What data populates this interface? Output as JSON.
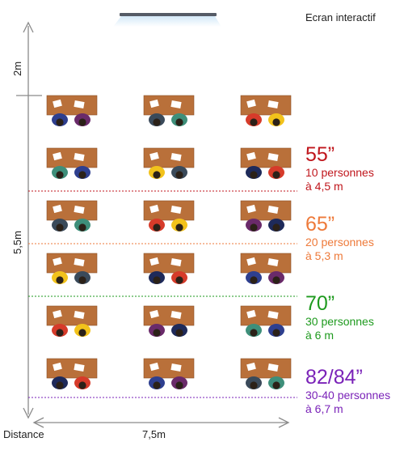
{
  "screen": {
    "label": "Ecran interactif",
    "color": "#555b66"
  },
  "axes": {
    "distance_label": "Distance",
    "width_label": "7,5m",
    "depth_label": "5,5m",
    "front_gap_label": "2m",
    "color": "#8a8a8a"
  },
  "colors": {
    "desk": "#b9703a",
    "desk_dark": "#8a4f25",
    "paper": "#ffffff",
    "hair": "#2b2118"
  },
  "student_colors": [
    "#2e3f8f",
    "#3a4a5a",
    "#d63b2a",
    "#6a2a6a",
    "#3e8f7a",
    "#f2c21b",
    "#1e2a5a"
  ],
  "screen_sizes": [
    {
      "title": "55”",
      "line1": "10 personnes",
      "line2": "à 4,5 m",
      "color": "#c0161c"
    },
    {
      "title": "65”",
      "line1": "20 personnes",
      "line2": "à 5,3 m",
      "color": "#ee7a3a"
    },
    {
      "title": "70”",
      "line1": "30 personnes",
      "line2": "à 6 m",
      "color": "#1e9a1e"
    },
    {
      "title": "82/84”",
      "line1": "30-40 personnes",
      "line2": "à 6,7 m",
      "color": "#7a22b8"
    }
  ]
}
